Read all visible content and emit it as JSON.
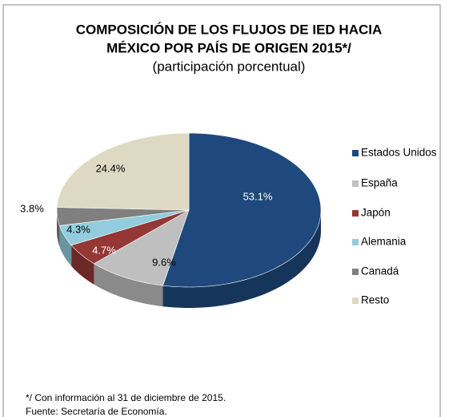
{
  "chart_data": {
    "type": "pie3d",
    "title": [
      "COMPOSICIÓN DE LOS FLUJOS DE IED HACIA",
      "MÉXICO POR PAÍS DE ORIGEN 2015*/"
    ],
    "subtitle": "(participación porcentual)",
    "categories": [
      "Estados Unidos",
      "España",
      "Japón",
      "Alemania",
      "Canadá",
      "Resto"
    ],
    "values": [
      53.1,
      9.6,
      4.7,
      4.3,
      3.8,
      24.4
    ],
    "value_labels": [
      "53.1%",
      "9.6%",
      "4.7%",
      "4.3%",
      "3.8%",
      "24.4%"
    ],
    "colors": [
      "#1f497d",
      "#bfbfbf",
      "#953735",
      "#93cddd",
      "#7f7f7f",
      "#ddd9c3"
    ],
    "legend": "right",
    "notes": [
      "*/ Con información al 31 de diciembre de 2015.",
      "Fuente: Secretaría de Economía."
    ]
  }
}
